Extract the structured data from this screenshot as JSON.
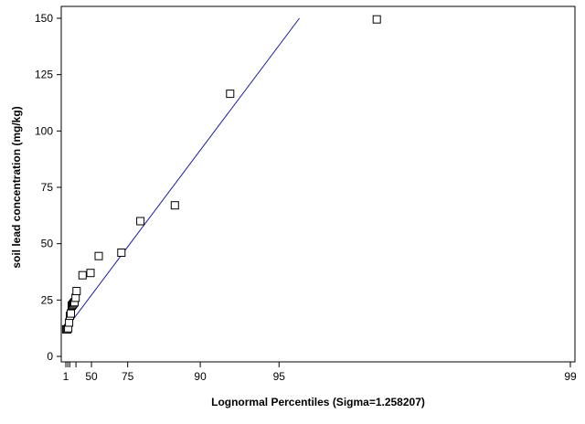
{
  "chart_data": {
    "type": "scatter",
    "xlabel": "Lognormal Percentiles (Sigma=1.258207)",
    "ylabel": "soil lead concentration (mg/kg)",
    "ylim": [
      0,
      150
    ],
    "y_ticks": [
      0,
      25,
      50,
      75,
      100,
      125,
      150
    ],
    "x_scale": "lognormal-probability",
    "x_ticks": [
      1,
      5,
      10,
      25,
      50,
      75,
      90,
      95,
      99
    ],
    "x_tick_labels": [
      "1",
      "",
      "",
      "",
      "50",
      "75",
      "90",
      "95",
      "99"
    ],
    "grid": false,
    "legend": "none",
    "colors": {
      "points": "#000000",
      "fit_line": "#1a1aa0",
      "axes": "#000000"
    },
    "series": [
      {
        "marker": "square",
        "points": [
          {
            "x": 1.6,
            "y": 12
          },
          {
            "x": 3.8,
            "y": 12
          },
          {
            "x": 6.0,
            "y": 12.5
          },
          {
            "x": 8.3,
            "y": 15
          },
          {
            "x": 10.5,
            "y": 18
          },
          {
            "x": 12.8,
            "y": 19
          },
          {
            "x": 15.1,
            "y": 22.5
          },
          {
            "x": 17.3,
            "y": 23
          },
          {
            "x": 19.6,
            "y": 23.5
          },
          {
            "x": 21.8,
            "y": 24
          },
          {
            "x": 24.1,
            "y": 26
          },
          {
            "x": 26.4,
            "y": 29
          },
          {
            "x": 37.5,
            "y": 36
          },
          {
            "x": 48.9,
            "y": 37
          },
          {
            "x": 57.5,
            "y": 44.5
          },
          {
            "x": 72.3,
            "y": 46
          },
          {
            "x": 79.4,
            "y": 60
          },
          {
            "x": 86.8,
            "y": 67
          },
          {
            "x": 92.5,
            "y": 116.5
          },
          {
            "x": 97.4,
            "y": 149.5
          }
        ]
      }
    ],
    "fit_line": {
      "x": [
        1.6,
        95.7
      ],
      "y": [
        12.3,
        150
      ]
    }
  }
}
